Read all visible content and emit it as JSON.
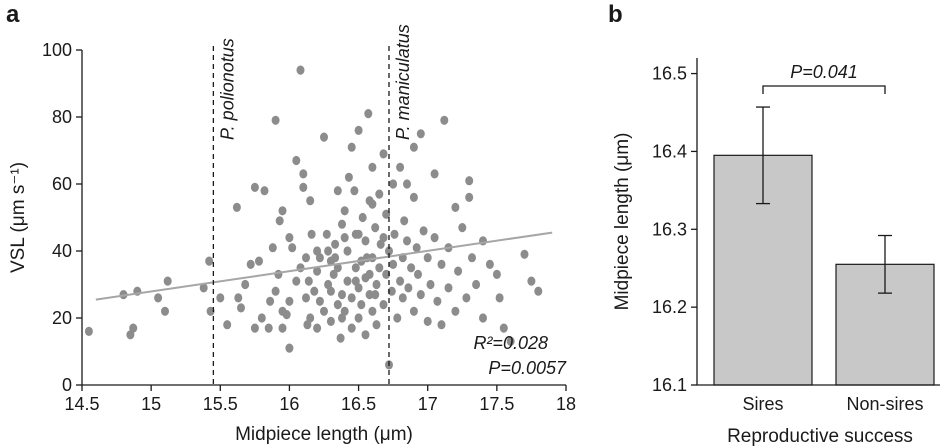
{
  "panel_a": {
    "label": "a"
  },
  "panel_b": {
    "label": "b"
  },
  "chart_data": [
    {
      "type": "scatter",
      "panel": "a",
      "xlabel": "Midpiece length (μm)",
      "ylabel": "VSL (μm s⁻¹)",
      "xlim": [
        14.5,
        18
      ],
      "ylim": [
        0,
        100
      ],
      "xticks": [
        "14.5",
        "15",
        "15.5",
        "16",
        "16.5",
        "17",
        "17.5",
        "18"
      ],
      "yticks": [
        "0",
        "20",
        "40",
        "60",
        "80",
        "100"
      ],
      "grid": false,
      "point_color": "#8c8c8c",
      "trend_line": {
        "x": [
          14.6,
          17.9
        ],
        "y": [
          25.5,
          45.5
        ],
        "color": "#a6a6a6"
      },
      "reference_lines": [
        {
          "label": "P. polionotus",
          "x": 15.45
        },
        {
          "label": "P. maniculatus",
          "x": 16.72
        }
      ],
      "stats": {
        "r2_label": "R²=0.028",
        "p_label": "P=0.0057"
      },
      "points": [
        [
          14.55,
          16
        ],
        [
          14.8,
          27
        ],
        [
          14.85,
          15
        ],
        [
          14.87,
          17
        ],
        [
          14.9,
          28
        ],
        [
          15.05,
          26
        ],
        [
          15.1,
          22
        ],
        [
          15.12,
          31
        ],
        [
          15.38,
          29
        ],
        [
          15.42,
          37
        ],
        [
          15.43,
          22
        ],
        [
          15.5,
          26
        ],
        [
          15.55,
          18
        ],
        [
          15.62,
          53
        ],
        [
          15.63,
          26
        ],
        [
          15.65,
          23
        ],
        [
          15.68,
          30
        ],
        [
          15.72,
          36
        ],
        [
          15.75,
          17
        ],
        [
          15.75,
          59
        ],
        [
          15.78,
          37
        ],
        [
          15.8,
          20
        ],
        [
          15.82,
          58
        ],
        [
          15.85,
          17
        ],
        [
          15.86,
          25
        ],
        [
          15.88,
          41
        ],
        [
          15.9,
          79
        ],
        [
          15.9,
          28
        ],
        [
          15.92,
          33
        ],
        [
          15.93,
          49
        ],
        [
          15.95,
          22
        ],
        [
          15.95,
          17
        ],
        [
          15.98,
          21
        ],
        [
          16.0,
          11
        ],
        [
          16.0,
          25
        ],
        [
          16.02,
          41
        ],
        [
          16.05,
          31
        ],
        [
          16.08,
          35
        ],
        [
          16.08,
          94
        ],
        [
          16.1,
          59
        ],
        [
          16.1,
          63
        ],
        [
          16.12,
          26
        ],
        [
          16.13,
          18
        ],
        [
          16.14,
          31
        ],
        [
          16.15,
          20
        ],
        [
          16.16,
          45
        ],
        [
          16.18,
          28
        ],
        [
          16.2,
          17
        ],
        [
          16.2,
          34
        ],
        [
          16.2,
          40
        ],
        [
          16.22,
          25
        ],
        [
          16.25,
          22
        ],
        [
          16.25,
          74
        ],
        [
          16.28,
          30
        ],
        [
          16.3,
          19
        ],
        [
          16.3,
          28
        ],
        [
          16.3,
          37
        ],
        [
          16.32,
          33
        ],
        [
          16.33,
          42
        ],
        [
          16.35,
          24
        ],
        [
          16.35,
          35
        ],
        [
          16.37,
          14
        ],
        [
          16.38,
          48
        ],
        [
          16.38,
          27
        ],
        [
          16.4,
          52
        ],
        [
          16.4,
          22
        ],
        [
          16.42,
          40
        ],
        [
          16.42,
          31
        ],
        [
          16.43,
          62
        ],
        [
          16.45,
          17
        ],
        [
          16.45,
          26
        ],
        [
          16.47,
          58
        ],
        [
          16.48,
          45
        ],
        [
          16.48,
          35
        ],
        [
          16.5,
          20
        ],
        [
          16.5,
          29
        ],
        [
          16.5,
          76
        ],
        [
          16.52,
          37
        ],
        [
          16.52,
          24
        ],
        [
          16.53,
          50
        ],
        [
          16.55,
          32
        ],
        [
          16.55,
          15
        ],
        [
          16.55,
          43
        ],
        [
          16.57,
          81
        ],
        [
          16.58,
          27
        ],
        [
          16.58,
          55
        ],
        [
          16.6,
          22
        ],
        [
          16.6,
          38
        ],
        [
          16.6,
          65
        ],
        [
          16.62,
          47
        ],
        [
          16.63,
          30
        ],
        [
          16.63,
          18
        ],
        [
          16.65,
          57
        ],
        [
          16.65,
          35
        ],
        [
          16.66,
          42
        ],
        [
          16.68,
          24
        ],
        [
          16.68,
          69
        ],
        [
          16.7,
          51
        ],
        [
          16.7,
          33
        ],
        [
          16.72,
          6
        ],
        [
          16.72,
          40
        ],
        [
          16.74,
          28
        ],
        [
          16.75,
          60
        ],
        [
          16.75,
          36
        ],
        [
          16.76,
          45
        ],
        [
          16.78,
          20
        ],
        [
          16.8,
          31
        ],
        [
          16.8,
          65
        ],
        [
          16.82,
          38
        ],
        [
          16.82,
          26
        ],
        [
          16.83,
          49
        ],
        [
          16.85,
          43
        ],
        [
          16.86,
          29
        ],
        [
          16.88,
          35
        ],
        [
          16.9,
          22
        ],
        [
          16.9,
          56
        ],
        [
          16.92,
          41
        ],
        [
          16.93,
          33
        ],
        [
          16.95,
          27
        ],
        [
          16.95,
          75
        ],
        [
          16.97,
          46
        ],
        [
          17.0,
          38
        ],
        [
          17.0,
          19
        ],
        [
          17.02,
          30
        ],
        [
          17.05,
          63
        ],
        [
          17.05,
          44
        ],
        [
          17.07,
          25
        ],
        [
          17.1,
          36
        ],
        [
          17.1,
          18
        ],
        [
          17.12,
          79
        ],
        [
          17.15,
          41
        ],
        [
          17.15,
          29
        ],
        [
          17.2,
          53
        ],
        [
          17.2,
          22
        ],
        [
          17.22,
          34
        ],
        [
          17.25,
          47
        ],
        [
          17.28,
          26
        ],
        [
          17.3,
          56
        ],
        [
          17.32,
          38
        ],
        [
          17.35,
          30
        ],
        [
          17.4,
          43
        ],
        [
          17.4,
          20
        ],
        [
          17.45,
          36
        ],
        [
          17.5,
          33
        ],
        [
          17.52,
          26
        ],
        [
          17.55,
          17
        ],
        [
          17.6,
          13
        ],
        [
          17.7,
          39
        ],
        [
          17.75,
          31
        ],
        [
          17.8,
          28
        ],
        [
          15.95,
          52
        ],
        [
          16.05,
          67
        ],
        [
          16.15,
          55
        ],
        [
          16.27,
          45
        ],
        [
          16.35,
          58
        ],
        [
          16.45,
          71
        ],
        [
          16.6,
          54
        ],
        [
          16.85,
          60
        ],
        [
          16.9,
          71
        ],
        [
          17.3,
          61
        ],
        [
          16.0,
          44
        ],
        [
          16.4,
          44
        ],
        [
          16.56,
          38
        ],
        [
          16.68,
          44
        ],
        [
          16.22,
          38
        ],
        [
          16.33,
          38
        ],
        [
          16.48,
          31
        ],
        [
          16.5,
          45
        ],
        [
          16.62,
          27
        ],
        [
          16.38,
          20
        ],
        [
          16.58,
          33
        ],
        [
          16.12,
          38
        ],
        [
          16.28,
          40
        ]
      ]
    },
    {
      "type": "bar",
      "panel": "b",
      "categories": [
        "Sires",
        "Non-sires"
      ],
      "values": [
        16.395,
        16.255
      ],
      "error": [
        0.062,
        0.037
      ],
      "xlabel": "Reproductive success",
      "ylabel": "Midpiece length (μm)",
      "ylim": [
        16.1,
        16.52
      ],
      "yticks": [
        "16.1",
        "16.2",
        "16.3",
        "16.4",
        "16.5"
      ],
      "grid": false,
      "bar_color": "#c8c8c8",
      "significance": {
        "label": "P=0.041",
        "between": [
          "Sires",
          "Non-sires"
        ]
      }
    }
  ]
}
